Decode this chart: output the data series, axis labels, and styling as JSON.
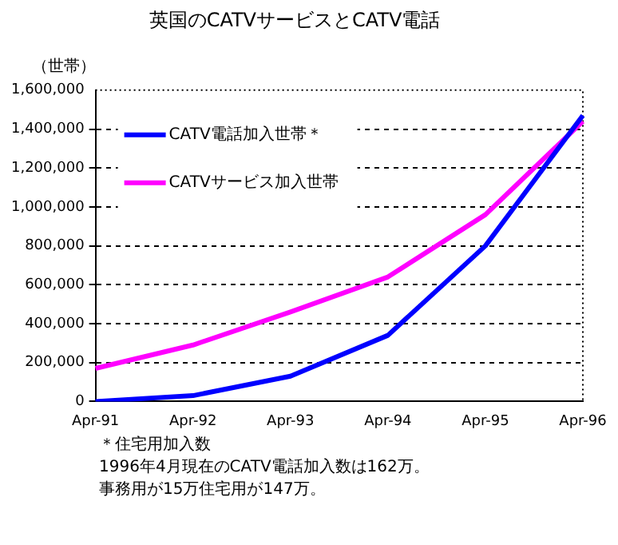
{
  "chart_data": {
    "type": "line",
    "title": "英国のCATVサービスとCATV電話",
    "ylabel": "（世帯）",
    "categories": [
      "Apr-91",
      "Apr-92",
      "Apr-93",
      "Apr-94",
      "Apr-95",
      "Apr-96"
    ],
    "series": [
      {
        "name": "CATV電話加入世帯＊",
        "color": "#0000ff",
        "values": [
          0,
          30000,
          130000,
          340000,
          800000,
          1470000
        ]
      },
      {
        "name": "CATVサービス加入世帯",
        "color": "#ff00ff",
        "values": [
          170000,
          290000,
          460000,
          640000,
          960000,
          1440000
        ]
      }
    ],
    "ylim": [
      0,
      1600000
    ],
    "yticks": [
      0,
      {
        "value": 200000,
        "label": "200,000"
      },
      {
        "value": 400000,
        "label": "400,000"
      },
      {
        "value": 600000,
        "label": "600,000"
      },
      {
        "value": 800000,
        "label": "800,000"
      },
      {
        "value": 1000000,
        "label": "1,000,000"
      },
      {
        "value": 1200000,
        "label": "1,200,000"
      },
      {
        "value": 1400000,
        "label": "1,400,000"
      },
      {
        "value": 1600000,
        "label": "1,600,000"
      }
    ],
    "grid": "y",
    "legend": "top left",
    "marker": "none",
    "line_style": "solid",
    "annotations": [
      "＊住宅用加入数",
      "1996年4月現在のCATV電話加入数は162万。",
      "事務用が15万住宅用が147万。"
    ]
  }
}
